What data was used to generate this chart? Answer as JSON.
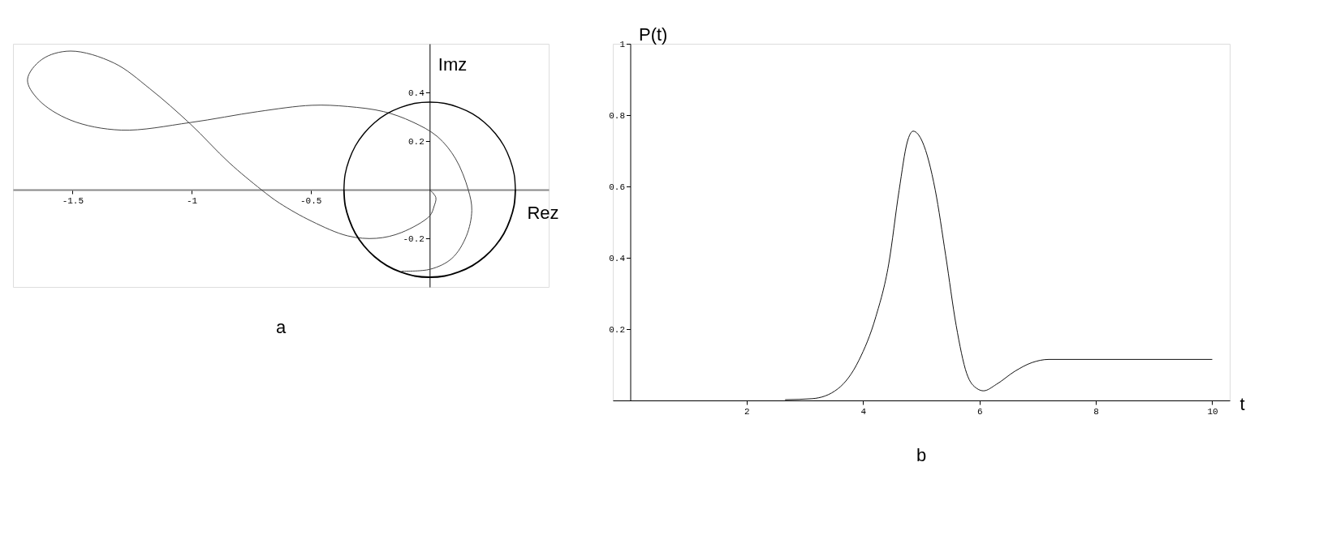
{
  "chart_data": [
    {
      "type": "line",
      "title": "a",
      "xlabel": "Rez",
      "ylabel": "Imz",
      "xlim": [
        -1.75,
        0.5
      ],
      "ylim": [
        -0.4,
        0.6
      ],
      "xticks": [
        -1.5,
        -1,
        -0.5
      ],
      "yticks": [
        -0.2,
        0.2,
        0.4
      ],
      "grid": false,
      "legend": false,
      "series": [
        {
          "color": "#444444",
          "x": [
            0,
            0.026,
            0.018,
            0,
            -0.118,
            -0.224,
            -0.344,
            -0.495,
            -0.631,
            -0.707,
            -0.843,
            -1.006,
            -1.175,
            -1.326,
            -1.508,
            -1.628,
            -1.689,
            -1.643,
            -1.508,
            -1.296,
            -1.006,
            -0.722,
            -0.495,
            -0.344,
            -0.193,
            -0.073,
            0.033,
            0.109,
            0.162,
            0.177,
            0.154,
            0.094,
            0.003,
            -0.118
          ],
          "values": [
            0,
            -0.032,
            -0.07,
            -0.108,
            -0.176,
            -0.2,
            -0.19,
            -0.13,
            -0.055,
            0,
            0.112,
            0.271,
            0.415,
            0.521,
            0.57,
            0.536,
            0.453,
            0.37,
            0.286,
            0.245,
            0.276,
            0.321,
            0.347,
            0.342,
            0.321,
            0.279,
            0.218,
            0.127,
            0,
            -0.085,
            -0.191,
            -0.282,
            -0.327,
            -0.335
          ]
        },
        {
          "color": "#000000",
          "x": [
            0.36,
            0.355,
            0.338,
            0.312,
            0.276,
            0.231,
            0.18,
            0.123,
            0.063,
            0,
            -0.063,
            -0.123,
            -0.18,
            -0.231,
            -0.276,
            -0.312,
            -0.338,
            -0.355,
            -0.36
          ],
          "values": [
            0,
            0.063,
            0.123,
            0.18,
            0.231,
            0.276,
            0.312,
            0.338,
            0.355,
            0.36,
            0.355,
            0.338,
            0.312,
            0.276,
            0.231,
            0.18,
            0.123,
            0.063,
            0
          ]
        },
        {
          "color": "#000000",
          "x": [
            -0.36,
            -0.355,
            -0.338,
            -0.312,
            -0.276,
            -0.231,
            -0.18,
            -0.123,
            -0.063,
            0,
            0.063,
            0.123,
            0.18,
            0.231,
            0.276,
            0.312,
            0.338,
            0.355,
            0.36
          ],
          "values": [
            0,
            -0.063,
            -0.123,
            -0.18,
            -0.231,
            -0.276,
            -0.312,
            -0.338,
            -0.355,
            -0.36,
            -0.355,
            -0.338,
            -0.312,
            -0.276,
            -0.231,
            -0.18,
            -0.123,
            -0.063,
            0
          ]
        }
      ]
    },
    {
      "type": "line",
      "title": "b",
      "xlabel": "t",
      "ylabel": "P(t)",
      "xlim": [
        -0.3,
        10.3
      ],
      "ylim": [
        0,
        1
      ],
      "xticks": [
        2,
        4,
        6,
        8,
        10
      ],
      "yticks": [
        0.2,
        0.4,
        0.6,
        0.8,
        1
      ],
      "grid": false,
      "legend": false,
      "series": [
        {
          "color": "#111111",
          "x": [
            2.66,
            3.13,
            3.57,
            3.93,
            4.22,
            4.44,
            4.62,
            4.76,
            4.86,
            5.02,
            5.24,
            5.42,
            5.6,
            5.78,
            5.96,
            6.07,
            6.29,
            6.61,
            6.9,
            7.19,
            10
          ],
          "values": [
            0.002,
            0.005,
            0.033,
            0.113,
            0.235,
            0.382,
            0.59,
            0.725,
            0.755,
            0.725,
            0.59,
            0.406,
            0.21,
            0.076,
            0.033,
            0.027,
            0.045,
            0.082,
            0.106,
            0.115,
            0.115
          ]
        }
      ]
    }
  ]
}
